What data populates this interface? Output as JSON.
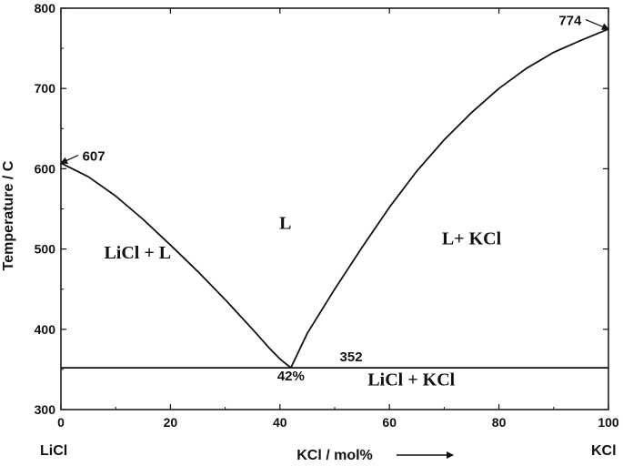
{
  "chart_data": {
    "type": "line",
    "title": "",
    "xlabel": "KCl / mol%",
    "ylabel": "Temperature / C",
    "xlim": [
      0,
      100
    ],
    "ylim": [
      300,
      800
    ],
    "x_ticks": [
      0,
      20,
      40,
      60,
      80,
      100
    ],
    "y_ticks": [
      300,
      400,
      500,
      600,
      700,
      800
    ],
    "x_end_labels": {
      "left": "LiCl",
      "right": "KCl"
    },
    "grid": false,
    "legend": "none",
    "series": [
      {
        "values_xy": [
          [
            0,
            607
          ],
          [
            5,
            590
          ],
          [
            10,
            566
          ],
          [
            15,
            537
          ],
          [
            20,
            505
          ],
          [
            25,
            472
          ],
          [
            30,
            437
          ],
          [
            35,
            400
          ],
          [
            38,
            377
          ],
          [
            40,
            363
          ],
          [
            42,
            352
          ]
        ]
      },
      {
        "values_xy": [
          [
            42,
            352
          ],
          [
            45,
            395
          ],
          [
            50,
            450
          ],
          [
            55,
            502
          ],
          [
            60,
            552
          ],
          [
            65,
            597
          ],
          [
            70,
            636
          ],
          [
            75,
            670
          ],
          [
            80,
            700
          ],
          [
            85,
            725
          ],
          [
            90,
            745
          ],
          [
            95,
            760
          ],
          [
            100,
            774
          ]
        ]
      },
      {
        "values_xy": [
          [
            0,
            352
          ],
          [
            100,
            352
          ]
        ]
      }
    ],
    "region_labels": [
      {
        "text": "L",
        "x": 41,
        "y": 525
      },
      {
        "text": "LiCl + L",
        "x": 14,
        "y": 488
      },
      {
        "text": "L+ KCl",
        "x": 75,
        "y": 506
      },
      {
        "text": "LiCl + KCl",
        "x": 64,
        "y": 330
      }
    ],
    "annotations": [
      {
        "text": "607",
        "x": 6,
        "y": 610,
        "arrow_to": [
          0,
          607
        ]
      },
      {
        "text": "774",
        "x": 93,
        "y": 779,
        "arrow_to": [
          100,
          774
        ]
      },
      {
        "text": "352",
        "x": 53,
        "y": 360
      },
      {
        "text": "42%",
        "x": 42,
        "y": 336
      }
    ]
  }
}
